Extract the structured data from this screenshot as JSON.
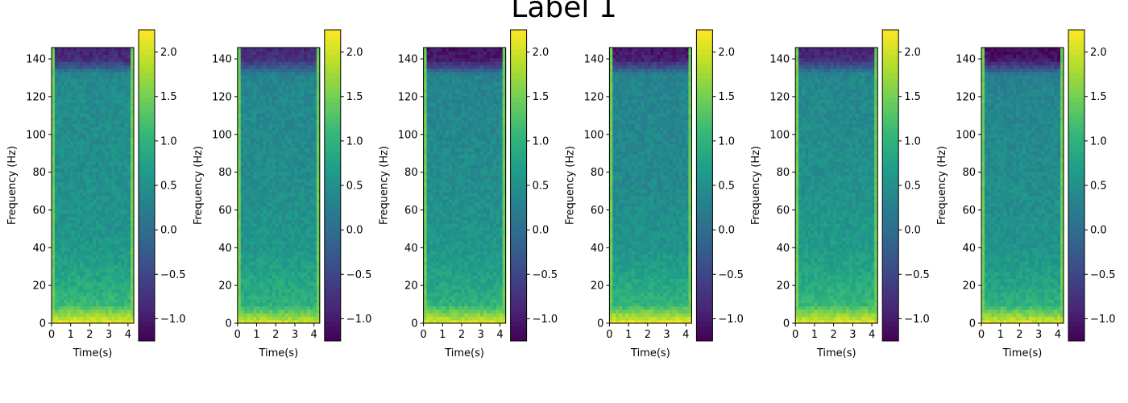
{
  "suptitle": "Label 1",
  "colormap": "viridis",
  "colors": {
    "viridis_stops": [
      "#440154",
      "#482878",
      "#3e4989",
      "#31688e",
      "#26828e",
      "#1f9e89",
      "#35b779",
      "#6ece58",
      "#b5de2b",
      "#fde725"
    ]
  },
  "chart_data": [
    {
      "type": "heatmap",
      "title": "",
      "xlabel": "Time(s)",
      "ylabel": "Frequency (Hz)",
      "xlim": [
        0,
        4.3
      ],
      "ylim": [
        0,
        146
      ],
      "xticks": [
        "0",
        "1",
        "2",
        "3",
        "4"
      ],
      "yticks": [
        "0",
        "20",
        "40",
        "60",
        "80",
        "100",
        "120",
        "140"
      ],
      "colorbar": {
        "range": [
          -1.25,
          2.25
        ],
        "ticks": [
          "−1.0",
          "−0.5",
          "0.0",
          "0.5",
          "1.0",
          "1.5",
          "2.0"
        ]
      },
      "profile": {
        "frequency_hz": [
          0,
          4,
          10,
          20,
          40,
          80,
          120,
          132,
          136,
          140,
          146
        ],
        "value": [
          2.15,
          1.8,
          1.1,
          0.9,
          0.6,
          0.5,
          0.45,
          0.4,
          -0.3,
          -0.8,
          -0.9
        ]
      }
    },
    {
      "type": "heatmap",
      "title": "",
      "xlabel": "Time(s)",
      "ylabel": "Frequency (Hz)",
      "xlim": [
        0,
        4.3
      ],
      "ylim": [
        0,
        146
      ],
      "xticks": [
        "0",
        "1",
        "2",
        "3",
        "4"
      ],
      "yticks": [
        "0",
        "20",
        "40",
        "60",
        "80",
        "100",
        "120",
        "140"
      ],
      "colorbar": {
        "range": [
          -1.25,
          2.25
        ],
        "ticks": [
          "−1.0",
          "−0.5",
          "0.0",
          "0.5",
          "1.0",
          "1.5",
          "2.0"
        ]
      },
      "profile": {
        "frequency_hz": [
          0,
          4,
          10,
          20,
          40,
          80,
          120,
          132,
          136,
          140,
          146
        ],
        "value": [
          2.1,
          1.6,
          0.95,
          0.85,
          0.6,
          0.45,
          0.4,
          0.3,
          -0.3,
          -0.75,
          -0.85
        ]
      }
    },
    {
      "type": "heatmap",
      "title": "",
      "xlabel": "Time(s)",
      "ylabel": "Frequency (Hz)",
      "xlim": [
        0,
        4.3
      ],
      "ylim": [
        0,
        146
      ],
      "xticks": [
        "0",
        "1",
        "2",
        "3",
        "4"
      ],
      "yticks": [
        "0",
        "20",
        "40",
        "60",
        "80",
        "100",
        "120",
        "140"
      ],
      "colorbar": {
        "range": [
          -1.25,
          2.25
        ],
        "ticks": [
          "−1.0",
          "−0.5",
          "0.0",
          "0.5",
          "1.0",
          "1.5",
          "2.0"
        ]
      },
      "profile": {
        "frequency_hz": [
          0,
          4,
          10,
          20,
          40,
          80,
          120,
          132,
          136,
          140,
          146
        ],
        "value": [
          2.1,
          1.7,
          1.0,
          0.8,
          0.6,
          0.45,
          0.35,
          0.3,
          -0.5,
          -1.0,
          -1.1
        ]
      }
    },
    {
      "type": "heatmap",
      "title": "",
      "xlabel": "Time(s)",
      "ylabel": "Frequency (Hz)",
      "xlim": [
        0,
        4.3
      ],
      "ylim": [
        0,
        146
      ],
      "xticks": [
        "0",
        "1",
        "2",
        "3",
        "4"
      ],
      "yticks": [
        "0",
        "20",
        "40",
        "60",
        "80",
        "100",
        "120",
        "140"
      ],
      "colorbar": {
        "range": [
          -1.25,
          2.25
        ],
        "ticks": [
          "−1.0",
          "−0.5",
          "0.0",
          "0.5",
          "1.0",
          "1.5",
          "2.0"
        ]
      },
      "profile": {
        "frequency_hz": [
          0,
          4,
          10,
          20,
          40,
          80,
          120,
          132,
          136,
          140,
          146
        ],
        "value": [
          2.2,
          1.8,
          1.05,
          0.85,
          0.55,
          0.4,
          0.35,
          0.3,
          -0.45,
          -0.95,
          -1.05
        ]
      }
    },
    {
      "type": "heatmap",
      "title": "",
      "xlabel": "Time(s)",
      "ylabel": "Frequency (Hz)",
      "xlim": [
        0,
        4.3
      ],
      "ylim": [
        0,
        146
      ],
      "xticks": [
        "0",
        "1",
        "2",
        "3",
        "4"
      ],
      "yticks": [
        "0",
        "20",
        "40",
        "60",
        "80",
        "100",
        "120",
        "140"
      ],
      "colorbar": {
        "range": [
          -1.25,
          2.25
        ],
        "ticks": [
          "−1.0",
          "−0.5",
          "0.0",
          "0.5",
          "1.0",
          "1.5",
          "2.0"
        ]
      },
      "profile": {
        "frequency_hz": [
          0,
          4,
          10,
          20,
          40,
          80,
          120,
          132,
          136,
          140,
          146
        ],
        "value": [
          2.15,
          1.75,
          1.1,
          0.9,
          0.65,
          0.5,
          0.4,
          0.35,
          -0.3,
          -0.8,
          -0.9
        ]
      }
    },
    {
      "type": "heatmap",
      "title": "",
      "xlabel": "Time(s)",
      "ylabel": "Frequency (Hz)",
      "xlim": [
        0,
        4.3
      ],
      "ylim": [
        0,
        146
      ],
      "xticks": [
        "0",
        "1",
        "2",
        "3",
        "4"
      ],
      "yticks": [
        "0",
        "20",
        "40",
        "60",
        "80",
        "100",
        "120",
        "140"
      ],
      "colorbar": {
        "range": [
          -1.25,
          2.25
        ],
        "ticks": [
          "−1.0",
          "−0.5",
          "0.0",
          "0.5",
          "1.0",
          "1.5",
          "2.0"
        ]
      },
      "profile": {
        "frequency_hz": [
          0,
          4,
          10,
          20,
          40,
          80,
          120,
          132,
          136,
          140,
          146
        ],
        "value": [
          2.1,
          1.7,
          1.0,
          0.8,
          0.55,
          0.45,
          0.35,
          0.25,
          -0.55,
          -1.05,
          -1.15
        ]
      }
    }
  ]
}
